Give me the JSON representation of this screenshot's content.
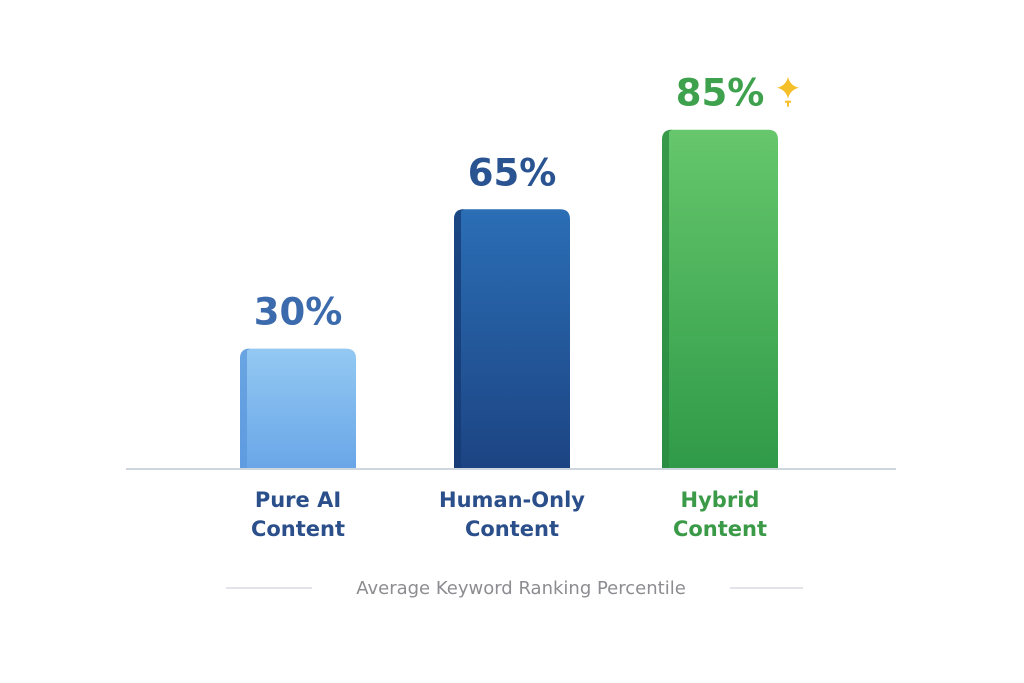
{
  "chart_data": {
    "type": "bar",
    "categories": [
      "Pure AI Content",
      "Human-Only Content",
      "Hybrid Content"
    ],
    "category_lines": [
      [
        "Pure AI",
        "Content"
      ],
      [
        "Human-Only",
        "Content"
      ],
      [
        "Hybrid",
        "Content"
      ]
    ],
    "values": [
      30,
      65,
      85
    ],
    "value_labels": [
      "30%",
      "65%",
      "85%"
    ],
    "ylim": [
      0,
      100
    ],
    "caption": "Average Keyword Ranking Percentile",
    "grid": false,
    "highlight_icon": "sparkle-icon",
    "colors": {
      "bars": [
        {
          "top": "#93c9f2",
          "bottom": "#6aa6e8",
          "side": "#5b97dc"
        },
        {
          "top": "#2b6eb5",
          "bottom": "#1c4483",
          "side": "#163a73"
        },
        {
          "top": "#66c76c",
          "bottom": "#2f9a48",
          "side": "#2a8a40"
        }
      ],
      "value_text": [
        "#3c6bad",
        "#2a5391",
        "#3ea14d"
      ],
      "category_text": [
        "#2b4f8a",
        "#2b4f8a",
        "#3a9a47"
      ],
      "sparkle": "#f5bf2a",
      "axis": "#cfd6de"
    }
  }
}
